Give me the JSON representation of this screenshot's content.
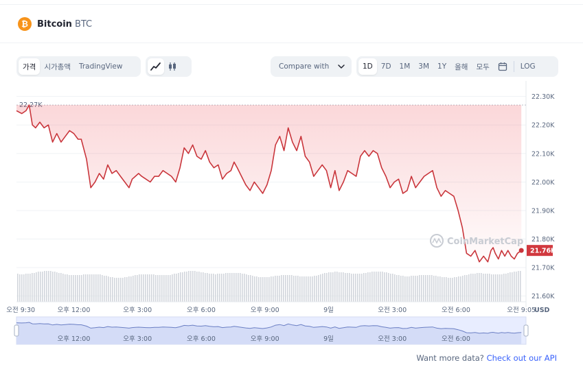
{
  "coin": {
    "logo_symbol": "₿",
    "name": "Bitcoin",
    "symbol": "BTC"
  },
  "toolbar": {
    "tabs": [
      "가격",
      "시가총액",
      "TradingView"
    ],
    "active_tab": "가격",
    "chart_types": [
      "line-chart-icon",
      "candlestick-icon"
    ],
    "compare_label": "Compare with",
    "ranges": [
      "1D",
      "7D",
      "1M",
      "3M",
      "1Y",
      "올해",
      "모두"
    ],
    "active_range": "1D",
    "log_label": "LOG"
  },
  "footer": {
    "prefix": "Want more data?",
    "link": "Check out our API"
  },
  "colors": {
    "line": "#c9353b",
    "fill": "#ea3943",
    "brand": "#f7931a",
    "link": "#3861fb",
    "last_price_bg": "#d1393f"
  },
  "chart_data": {
    "type": "line",
    "currency": "USD",
    "watermark": "CoinMarketCap",
    "start_label": "22.27K",
    "last_price_label": "21.76K",
    "y_ticks": [
      "22.30K",
      "22.20K",
      "22.10K",
      "22.00K",
      "21.90K",
      "21.80K",
      "21.70K",
      "21.60K"
    ],
    "ylim": [
      21.58,
      22.34
    ],
    "xlim": [
      9.3,
      33.3
    ],
    "x_ticks": [
      {
        "x": 9.5,
        "label": "오전 9:30"
      },
      {
        "x": 12,
        "label": "오후 12:00"
      },
      {
        "x": 15,
        "label": "오후 3:00"
      },
      {
        "x": 18,
        "label": "오후 6:00"
      },
      {
        "x": 21,
        "label": "오후 9:00"
      },
      {
        "x": 24,
        "label": "9일"
      },
      {
        "x": 27,
        "label": "오전 3:00"
      },
      {
        "x": 30,
        "label": "오전 6:00"
      },
      {
        "x": 33.08,
        "label": "오전 9:05"
      }
    ],
    "navigator_ticks": [
      {
        "x": 12,
        "label": "오후 12:00"
      },
      {
        "x": 15,
        "label": "오후 3:00"
      },
      {
        "x": 18,
        "label": "오후 6:00"
      },
      {
        "x": 21,
        "label": "오후 9:00"
      },
      {
        "x": 24,
        "label": "9일"
      },
      {
        "x": 27,
        "label": "오전 3:00"
      },
      {
        "x": 30,
        "label": "오전 6:00"
      }
    ],
    "series": [
      {
        "x": [
          9.3,
          9.55,
          9.75,
          9.9,
          10.05,
          10.2,
          10.4,
          10.6,
          10.8,
          11.0,
          11.2,
          11.4,
          11.6,
          11.8,
          12.0,
          12.2,
          12.35,
          12.6,
          12.8,
          13.0,
          13.2,
          13.4,
          13.6,
          13.8,
          14.0,
          14.2,
          14.4,
          14.6,
          14.75,
          14.9,
          15.05,
          15.2,
          15.4,
          15.6,
          15.8,
          16.0,
          16.2,
          16.4,
          16.6,
          16.8,
          17.0,
          17.2,
          17.4,
          17.6,
          17.8,
          18.0,
          18.2,
          18.4,
          18.6,
          18.8,
          19.0,
          19.2,
          19.4,
          19.55,
          19.7,
          19.9,
          20.1,
          20.3,
          20.5,
          20.7,
          20.9,
          21.1,
          21.3,
          21.5,
          21.7,
          21.9,
          22.1,
          22.3,
          22.5,
          22.7,
          22.9,
          23.1,
          23.3,
          23.5,
          23.7,
          23.9,
          24.1,
          24.3,
          24.5,
          24.7,
          24.9,
          25.1,
          25.3,
          25.5,
          25.7,
          25.9,
          26.1,
          26.3,
          26.5,
          26.7,
          26.9,
          27.1,
          27.3,
          27.5,
          27.7,
          27.9,
          28.1,
          28.3,
          28.5,
          28.7,
          28.9,
          29.1,
          29.3,
          29.5,
          29.7,
          29.9,
          30.1,
          30.3,
          30.5,
          30.7,
          30.9,
          31.1,
          31.3,
          31.5,
          31.65,
          31.75,
          31.85,
          32.0,
          32.15,
          32.3,
          32.45,
          32.6,
          32.75,
          32.9,
          33.08
        ],
        "values": [
          22.25,
          22.24,
          22.25,
          22.27,
          22.2,
          22.19,
          22.21,
          22.19,
          22.2,
          22.14,
          22.17,
          22.14,
          22.16,
          22.18,
          22.17,
          22.15,
          22.15,
          22.08,
          21.98,
          22.0,
          22.03,
          22.01,
          22.06,
          22.03,
          22.04,
          22.02,
          22.0,
          21.98,
          22.01,
          22.02,
          22.03,
          22.02,
          22.01,
          22.0,
          22.02,
          22.02,
          22.04,
          22.03,
          22.02,
          22.0,
          22.05,
          22.12,
          22.1,
          22.13,
          22.09,
          22.08,
          22.11,
          22.07,
          22.05,
          22.06,
          22.01,
          22.03,
          22.04,
          22.07,
          22.05,
          22.02,
          21.99,
          21.97,
          22.0,
          21.98,
          21.96,
          21.99,
          22.04,
          22.13,
          22.16,
          22.11,
          22.19,
          22.14,
          22.11,
          22.16,
          22.09,
          22.07,
          22.02,
          22.04,
          22.06,
          22.04,
          21.98,
          22.04,
          21.97,
          22.0,
          22.04,
          22.03,
          22.02,
          22.09,
          22.11,
          22.09,
          22.11,
          22.1,
          22.05,
          22.02,
          21.98,
          22.0,
          22.01,
          21.96,
          21.97,
          22.02,
          21.98,
          22.0,
          22.02,
          22.03,
          22.04,
          21.98,
          21.95,
          21.97,
          21.96,
          21.95,
          21.9,
          21.84,
          21.75,
          21.74,
          21.76,
          21.72,
          21.74,
          21.72,
          21.76,
          21.77,
          21.75,
          21.73,
          21.76,
          21.74,
          21.76,
          21.74,
          21.73,
          21.75,
          21.76
        ]
      }
    ]
  }
}
